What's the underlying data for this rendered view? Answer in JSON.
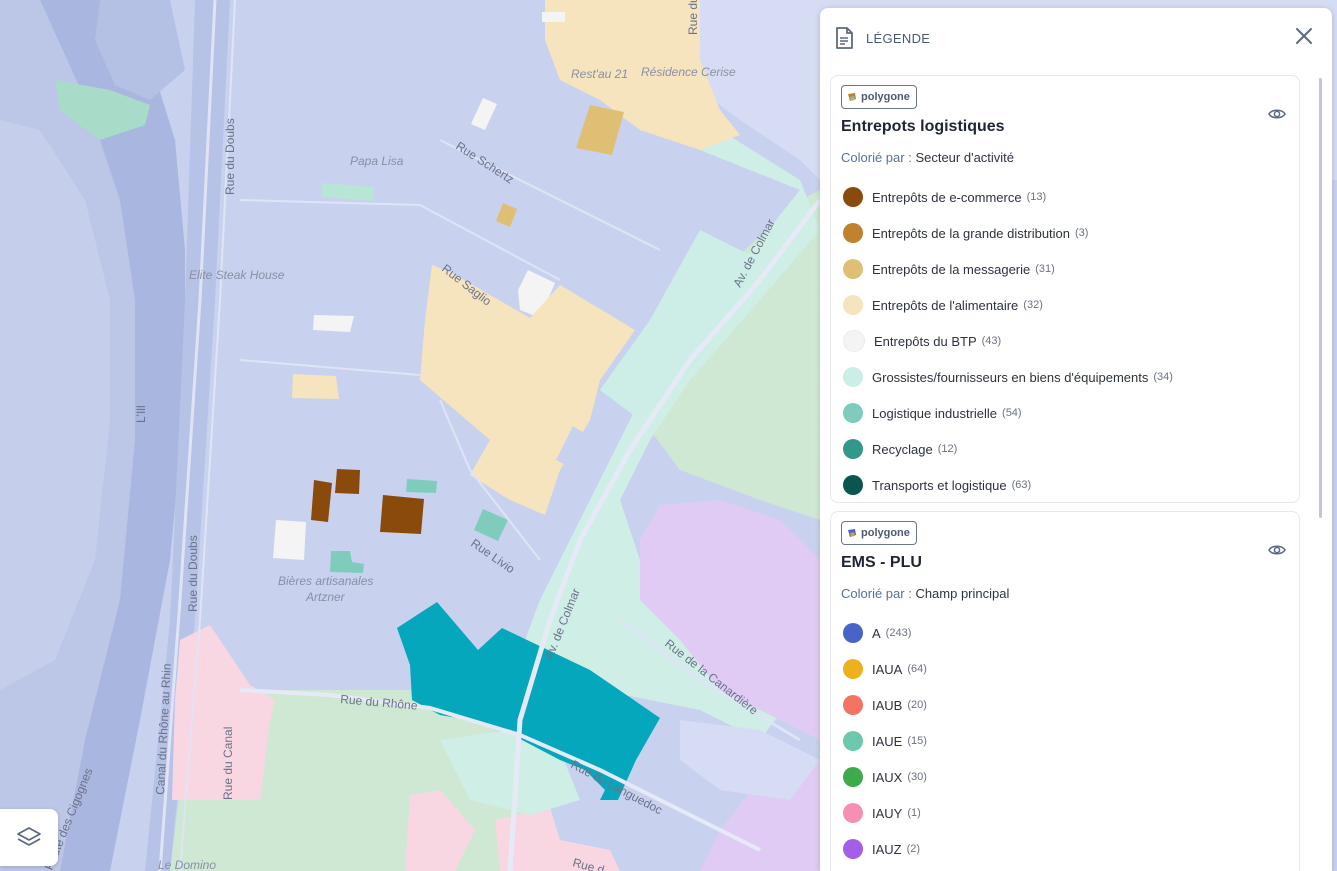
{
  "map": {
    "labels": {
      "rue_du_job": "Rue du Job",
      "restau21": "Rest'au 21",
      "residence_cerise": "Résidence Cerise",
      "papa_lisa": "Papa Lisa",
      "rue_schertz": "Rue Schertz",
      "rue_du_doubs_top": "Rue du Doubs",
      "elite_steak_house": "Elite Steak House",
      "rue_saglio": "Rue Saglio",
      "av_colmar_top": "Av. de Colmar",
      "lill": "L'Ill",
      "rue_livio": "Rue Livio",
      "bieres_line1": "Bières artisanales",
      "bieres_line2": "Artzner",
      "rue_du_doubs_bottom": "Rue du Doubs",
      "av_colmar_bottom": "Av. de Colmar",
      "rue_de_la_canardiere": "Rue de la Canardière",
      "rue_du_rhone": "Rue du Rhône",
      "canal": "Canal du Rhône au Rhin",
      "rue_du_canal": "Rue du Canal",
      "route_cigognes": "Route des Cigognes",
      "rue_du_languedoc": "Rue du Languedoc",
      "le_domino": "Le Domino",
      "rue_partial": "Rue d"
    }
  },
  "layers_button": {
    "icon": "layers-icon"
  },
  "legend": {
    "title": "LÉGENDE",
    "icons": {
      "header": "document-icon",
      "close": "close-icon",
      "visibility": "eye-icon"
    },
    "colored_by_label": "Colorié par :",
    "layers": [
      {
        "type_badge": "polygone",
        "name": "Entrepots logistiques",
        "colored_by": "Secteur d'activité",
        "items": [
          {
            "label": "Entrepôts de e-commerce",
            "count": "(13)",
            "color": "#8a4a0b"
          },
          {
            "label": "Entrepôts de la grande distribution",
            "count": "(3)",
            "color": "#c0822e"
          },
          {
            "label": "Entrepôts de la messagerie",
            "count": "(31)",
            "color": "#dfbf74"
          },
          {
            "label": "Entrepôts de l'alimentaire",
            "count": "(32)",
            "color": "#f5e4be"
          },
          {
            "label": "Entrepôts du BTP",
            "count": "(43)",
            "color": "#f4f4f4"
          },
          {
            "label": "Grossistes/fournisseurs en biens d'équipements",
            "count": "(34)",
            "color": "#cdeee6"
          },
          {
            "label": "Logistique industrielle",
            "count": "(54)",
            "color": "#80ccbc"
          },
          {
            "label": "Recyclage",
            "count": "(12)",
            "color": "#33988a"
          },
          {
            "label": "Transports et logistique",
            "count": "(63)",
            "color": "#08564f"
          }
        ]
      },
      {
        "type_badge": "polygone",
        "name": "EMS - PLU",
        "colored_by": "Champ principal",
        "items": [
          {
            "label": "A",
            "count": "(243)",
            "color": "#4a63c9"
          },
          {
            "label": "IAUA",
            "count": "(64)",
            "color": "#ecb11c"
          },
          {
            "label": "IAUB",
            "count": "(20)",
            "color": "#f37462"
          },
          {
            "label": "IAUE",
            "count": "(15)",
            "color": "#6cc9ae"
          },
          {
            "label": "IAUX",
            "count": "(30)",
            "color": "#3daa4b"
          },
          {
            "label": "IAUY",
            "count": "(1)",
            "color": "#f58fb3"
          },
          {
            "label": "IAUZ",
            "count": "(2)",
            "color": "#a45fe8"
          }
        ]
      }
    ]
  }
}
